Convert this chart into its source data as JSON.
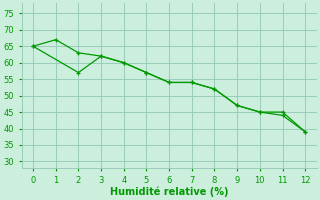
{
  "line1_x": [
    0,
    1,
    2,
    3,
    4,
    5,
    6,
    7,
    8,
    9,
    10,
    11,
    12
  ],
  "line1_y": [
    65,
    67,
    63,
    62,
    60,
    57,
    54,
    54,
    52,
    47,
    45,
    45,
    39
  ],
  "line2_x": [
    0,
    2,
    3,
    4,
    5,
    6,
    7,
    8,
    9,
    10,
    11,
    12
  ],
  "line2_y": [
    65,
    57,
    62,
    60,
    57,
    54,
    54,
    52,
    47,
    45,
    44,
    39
  ],
  "line_color": "#009900",
  "bg_color": "#cceedd",
  "grid_color": "#99ccbb",
  "xlabel": "Humidité relative (%)",
  "xlim": [
    -0.5,
    12.5
  ],
  "ylim": [
    28,
    78
  ],
  "yticks": [
    30,
    35,
    40,
    45,
    50,
    55,
    60,
    65,
    70,
    75
  ],
  "xticks": [
    0,
    1,
    2,
    3,
    4,
    5,
    6,
    7,
    8,
    9,
    10,
    11,
    12
  ],
  "xlabel_fontsize": 7,
  "tick_fontsize": 6
}
